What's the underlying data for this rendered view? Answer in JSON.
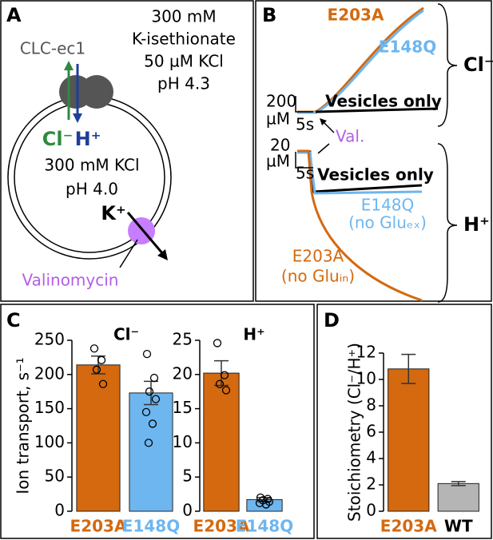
{
  "panel_a": {
    "letter": "A",
    "protein": "CLC-ec1",
    "outside": [
      "300 mM",
      "K-isethionate",
      "50 µM KCl",
      "pH 4.3"
    ],
    "ion_cl": "Cl⁻",
    "ion_h": "H⁺",
    "inside": [
      "300 mM KCl",
      "pH 4.0"
    ],
    "ion_k": "K⁺",
    "ionophore": "Valinomycin"
  },
  "panel_b": {
    "letter": "B",
    "top_e203a": "E203A",
    "top_e148q": "E148Q",
    "top_vesicles": "Vesicles only",
    "ion_top": "Cl⁻",
    "scale_top": [
      "200",
      "µM"
    ],
    "scale_time_top": "5s",
    "marker": "Val.",
    "scale_bottom": [
      "20",
      "µM"
    ],
    "scale_time_bottom": "5s",
    "bottom_vesicles": "Vesicles only",
    "bottom_e148q": [
      "E148Q",
      "(no Gluₑₓ)"
    ],
    "bottom_e203a": [
      "E203A",
      "(no Gluᵢₙ)"
    ],
    "ion_bottom": "H⁺"
  },
  "panel_c_letter": "C",
  "panel_d_letter": "D",
  "chart_data": [
    {
      "type": "bar",
      "title": "Cl⁻",
      "ylabel": "Ion transport, s⁻¹",
      "categories": [
        "E203A",
        "E148Q"
      ],
      "colors": [
        "#d4690f",
        "#6db6f0"
      ],
      "category_colors": [
        "#d4690f",
        "#6db6f0"
      ],
      "values": [
        214,
        173
      ],
      "errors": [
        13,
        17
      ],
      "points": [
        [
          238,
          221,
          207,
          186
        ],
        [
          230,
          195,
          175,
          164,
          145,
          128,
          100
        ]
      ],
      "ylim": [
        0,
        250
      ],
      "yticks": [
        0,
        50,
        100,
        150,
        200,
        250
      ]
    },
    {
      "type": "bar",
      "title": "H⁺",
      "categories": [
        "E203A",
        "E148Q"
      ],
      "colors": [
        "#d4690f",
        "#6db6f0"
      ],
      "category_colors": [
        "#d4690f",
        "#6db6f0"
      ],
      "values": [
        20.2,
        1.7
      ],
      "errors": [
        1.8,
        0.3
      ],
      "points": [
        [
          24.6,
          19.9,
          18.6,
          17.7
        ],
        [
          2.0,
          1.8,
          1.6,
          1.4,
          1.2,
          1.0
        ]
      ],
      "ylim": [
        0,
        25
      ],
      "yticks": [
        0,
        5,
        10,
        15,
        20,
        25
      ]
    },
    {
      "type": "bar",
      "ylabel": "Stoichiometry (Cl⁻/H⁺)",
      "categories": [
        "E203A",
        "WT"
      ],
      "colors": [
        "#d4690f",
        "#b5b5b5"
      ],
      "category_colors": [
        "#d4690f",
        "#000000"
      ],
      "values": [
        10.8,
        2.1
      ],
      "errors": [
        1.1,
        0.15
      ],
      "ylim": [
        0,
        12
      ],
      "yticks": [
        0,
        2,
        4,
        6,
        8,
        10,
        12
      ]
    }
  ]
}
